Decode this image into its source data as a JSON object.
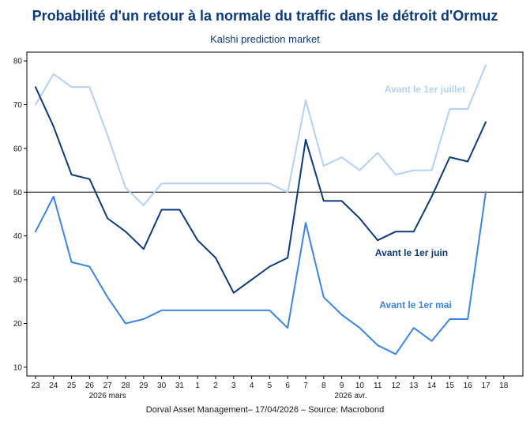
{
  "chart_data": {
    "type": "line",
    "title": "Probabilité d'un retour à la normale du traffic dans le détroit d'Ormuz",
    "subtitle": "Kalshi prediction market",
    "footer": "Dorval Asset Management– 17/04/2026  –  Source: Macrobond",
    "xlabel": "",
    "ylabel": "",
    "ylim": [
      8,
      82
    ],
    "yticks": [
      10,
      20,
      30,
      40,
      50,
      60,
      70,
      80
    ],
    "reference_line": 50,
    "categories": [
      "23",
      "24",
      "25",
      "26",
      "27",
      "28",
      "29",
      "30",
      "31",
      "1",
      "2",
      "3",
      "4",
      "5",
      "6",
      "7",
      "8",
      "9",
      "10",
      "11",
      "12",
      "13",
      "14",
      "15",
      "16",
      "17",
      "18"
    ],
    "month_labels": [
      {
        "text": "2026 mars",
        "at_index": 4
      },
      {
        "text": "2026 avr.",
        "at_index": 17.5
      }
    ],
    "series": [
      {
        "name": "Avant le 1er juillet",
        "color": "#b3d1f7",
        "values": [
          70,
          77,
          74,
          74,
          63,
          51,
          47,
          52,
          52,
          52,
          52,
          52,
          52,
          52,
          50,
          71,
          56,
          58,
          55,
          59,
          54,
          55,
          55,
          69,
          69,
          79,
          null
        ]
      },
      {
        "name": "Avant le 1er juin",
        "color": "#0b3a7e",
        "values": [
          74,
          65,
          54,
          53,
          44,
          41,
          37,
          46,
          46,
          39,
          35,
          27,
          30,
          33,
          35,
          62,
          48,
          48,
          44,
          39,
          41,
          41,
          49,
          58,
          57,
          66,
          null
        ]
      },
      {
        "name": "Avant le 1er mai",
        "color": "#3b86e4",
        "values": [
          41,
          49,
          34,
          33,
          26,
          20,
          21,
          23,
          23,
          23,
          23,
          23,
          23,
          23,
          19,
          43,
          26,
          22,
          19,
          15,
          13,
          19,
          16,
          21,
          21,
          50,
          null
        ]
      }
    ]
  }
}
